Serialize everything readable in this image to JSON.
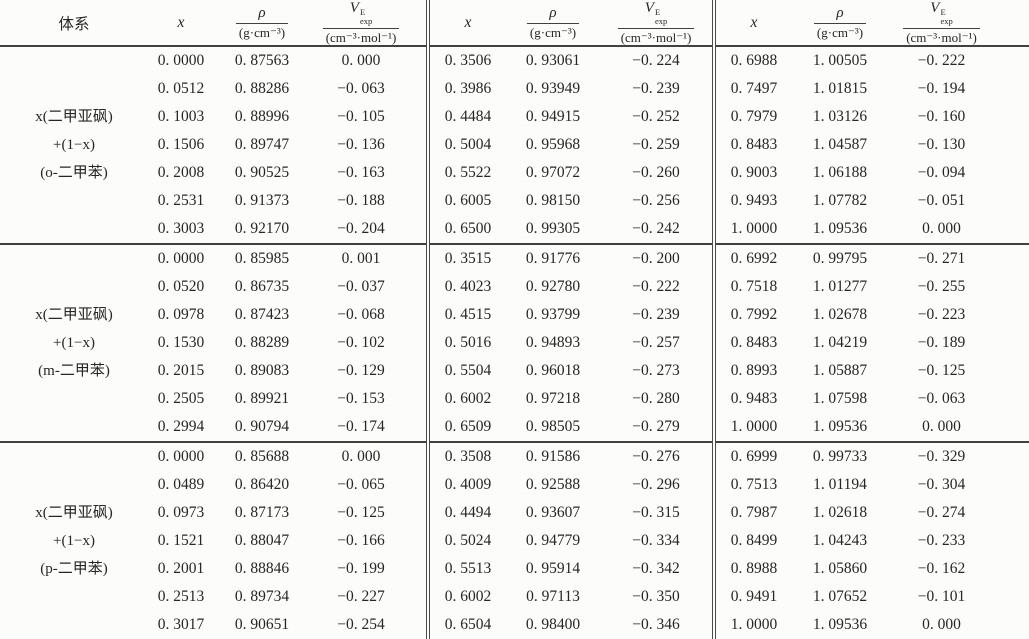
{
  "header": {
    "system_label": "体系",
    "x_label": "x",
    "rho_symbol": "ρ",
    "rho_unit": "(g·cm⁻³)",
    "v_symbol": "V",
    "v_sup": "E",
    "v_sub": "exp",
    "v_unit": "(cm⁻³·mol⁻¹)"
  },
  "groups": [
    {
      "label": [
        "x(二甲亚砜)",
        "+(1−x)",
        "(o-二甲苯)"
      ],
      "rows": [
        [
          "0. 0000",
          "0. 87563",
          "0. 000",
          "0. 3506",
          "0. 93061",
          "−0. 224",
          "0. 6988",
          "1. 00505",
          "−0. 222"
        ],
        [
          "0. 0512",
          "0. 88286",
          "−0. 063",
          "0. 3986",
          "0. 93949",
          "−0. 239",
          "0. 7497",
          "1. 01815",
          "−0. 194"
        ],
        [
          "0. 1003",
          "0. 88996",
          "−0. 105",
          "0. 4484",
          "0. 94915",
          "−0. 252",
          "0. 7979",
          "1. 03126",
          "−0. 160"
        ],
        [
          "0. 1506",
          "0. 89747",
          "−0. 136",
          "0. 5004",
          "0. 95968",
          "−0. 259",
          "0. 8483",
          "1. 04587",
          "−0. 130"
        ],
        [
          "0. 2008",
          "0. 90525",
          "−0. 163",
          "0. 5522",
          "0. 97072",
          "−0. 260",
          "0. 9003",
          "1. 06188",
          "−0. 094"
        ],
        [
          "0. 2531",
          "0. 91373",
          "−0. 188",
          "0. 6005",
          "0. 98150",
          "−0. 256",
          "0. 9493",
          "1. 07782",
          "−0. 051"
        ],
        [
          "0. 3003",
          "0. 92170",
          "−0. 204",
          "0. 6500",
          "0. 99305",
          "−0. 242",
          "1. 0000",
          "1. 09536",
          "0. 000"
        ]
      ]
    },
    {
      "label": [
        "x(二甲亚砜)",
        "+(1−x)",
        "(m-二甲苯)"
      ],
      "rows": [
        [
          "0. 0000",
          "0. 85985",
          "0. 001",
          "0. 3515",
          "0. 91776",
          "−0. 200",
          "0. 6992",
          "0. 99795",
          "−0. 271"
        ],
        [
          "0. 0520",
          "0. 86735",
          "−0. 037",
          "0. 4023",
          "0. 92780",
          "−0. 222",
          "0. 7518",
          "1. 01277",
          "−0. 255"
        ],
        [
          "0. 0978",
          "0. 87423",
          "−0. 068",
          "0. 4515",
          "0. 93799",
          "−0. 239",
          "0. 7992",
          "1. 02678",
          "−0. 223"
        ],
        [
          "0. 1530",
          "0. 88289",
          "−0. 102",
          "0. 5016",
          "0. 94893",
          "−0. 257",
          "0. 8483",
          "1. 04219",
          "−0. 189"
        ],
        [
          "0. 2015",
          "0. 89083",
          "−0. 129",
          "0. 5504",
          "0. 96018",
          "−0. 273",
          "0. 8993",
          "1. 05887",
          "−0. 125"
        ],
        [
          "0. 2505",
          "0. 89921",
          "−0. 153",
          "0. 6002",
          "0. 97218",
          "−0. 280",
          "0. 9483",
          "1. 07598",
          "−0. 063"
        ],
        [
          "0. 2994",
          "0. 90794",
          "−0. 174",
          "0. 6509",
          "0. 98505",
          "−0. 279",
          "1. 0000",
          "1. 09536",
          "0. 000"
        ]
      ]
    },
    {
      "label": [
        "x(二甲亚砜)",
        "+(1−x)",
        "(p-二甲苯)"
      ],
      "rows": [
        [
          "0. 0000",
          "0. 85688",
          "0. 000",
          "0. 3508",
          "0. 91586",
          "−0. 276",
          "0. 6999",
          "0. 99733",
          "−0. 329"
        ],
        [
          "0. 0489",
          "0. 86420",
          "−0. 065",
          "0. 4009",
          "0. 92588",
          "−0. 296",
          "0. 7513",
          "1. 01194",
          "−0. 304"
        ],
        [
          "0. 0973",
          "0. 87173",
          "−0. 125",
          "0. 4494",
          "0. 93607",
          "−0. 315",
          "0. 7987",
          "1. 02618",
          "−0. 274"
        ],
        [
          "0. 1521",
          "0. 88047",
          "−0. 166",
          "0. 5024",
          "0. 94779",
          "−0. 334",
          "0. 8499",
          "1. 04243",
          "−0. 233"
        ],
        [
          "0. 2001",
          "0. 88846",
          "−0. 199",
          "0. 5513",
          "0. 95914",
          "−0. 342",
          "0. 8988",
          "1. 05860",
          "−0. 162"
        ],
        [
          "0. 2513",
          "0. 89734",
          "−0. 227",
          "0. 6002",
          "0. 97113",
          "−0. 350",
          "0. 9491",
          "1. 07652",
          "−0. 101"
        ],
        [
          "0. 3017",
          "0. 90651",
          "−0. 254",
          "0. 6504",
          "0. 98400",
          "−0. 346",
          "1. 0000",
          "1. 09536",
          "0. 000"
        ]
      ]
    }
  ]
}
